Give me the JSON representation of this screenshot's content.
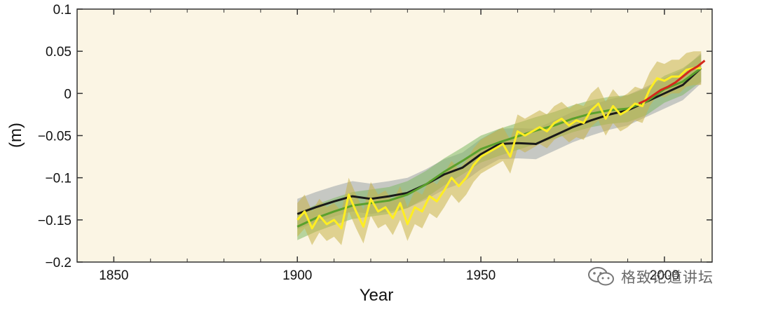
{
  "colors": {
    "background": "#fbf5e4",
    "axis": "#333333",
    "black_series": "#1a1a1a",
    "green_series": "#5aa02c",
    "yellow_series": "#ffee22",
    "red_series": "#d4281c",
    "black_band": "#9aa3a8",
    "green_band": "#7fb864",
    "yellow_band": "#c9b24a"
  },
  "watermark": {
    "text": "格致论道讲坛",
    "icon": "wechat-icon"
  },
  "chart_data": {
    "type": "line",
    "xlabel": "Year",
    "ylabel": "(m)",
    "xlim": [
      1840,
      2013
    ],
    "ylim": [
      -0.2,
      0.1
    ],
    "xticks": [
      1850,
      1900,
      1950,
      2000
    ],
    "xtick_labels": [
      "1850",
      "1900",
      "1950",
      "2000"
    ],
    "yticks": [
      0.1,
      0.05,
      0,
      -0.05,
      -0.1,
      -0.15,
      -0.2
    ],
    "ytick_labels": [
      "0.1",
      "0.05",
      "0",
      "−0.05",
      "−0.1",
      "−0.15",
      "−0.2"
    ],
    "grid": false,
    "series": [
      {
        "color": "#1a1a1a",
        "band": "#9aa3a8",
        "band_width": 0.018,
        "x": [
          1900,
          1905,
          1910,
          1915,
          1920,
          1925,
          1930,
          1935,
          1940,
          1945,
          1950,
          1955,
          1960,
          1965,
          1970,
          1975,
          1980,
          1985,
          1990,
          1995,
          2000,
          2005,
          2010
        ],
        "values": [
          -0.143,
          -0.135,
          -0.128,
          -0.122,
          -0.125,
          -0.122,
          -0.118,
          -0.108,
          -0.096,
          -0.088,
          -0.072,
          -0.06,
          -0.059,
          -0.06,
          -0.05,
          -0.04,
          -0.032,
          -0.025,
          -0.02,
          -0.01,
          0.0,
          0.01,
          0.03
        ]
      },
      {
        "color": "#5aa02c",
        "band": "#7fb864",
        "band_width": 0.016,
        "x": [
          1900,
          1905,
          1910,
          1915,
          1920,
          1925,
          1930,
          1935,
          1940,
          1945,
          1950,
          1955,
          1960,
          1965,
          1970,
          1975,
          1980,
          1985,
          1990,
          1995,
          2000,
          2005,
          2010
        ],
        "values": [
          -0.158,
          -0.148,
          -0.14,
          -0.133,
          -0.13,
          -0.127,
          -0.12,
          -0.108,
          -0.093,
          -0.08,
          -0.066,
          -0.058,
          -0.051,
          -0.044,
          -0.038,
          -0.03,
          -0.024,
          -0.02,
          -0.018,
          -0.01,
          0.005,
          0.014,
          0.03
        ]
      },
      {
        "color": "#ffee22",
        "band": "#c9b24a",
        "band_width": 0.02,
        "x": [
          1900,
          1902,
          1904,
          1906,
          1908,
          1910,
          1912,
          1914,
          1916,
          1918,
          1920,
          1922,
          1924,
          1926,
          1928,
          1930,
          1932,
          1934,
          1936,
          1938,
          1940,
          1942,
          1944,
          1946,
          1948,
          1950,
          1952,
          1954,
          1956,
          1958,
          1960,
          1962,
          1964,
          1966,
          1968,
          1970,
          1972,
          1974,
          1976,
          1978,
          1980,
          1982,
          1984,
          1986,
          1988,
          1990,
          1992,
          1994,
          1996,
          1998,
          2000,
          2002,
          2004,
          2006,
          2008,
          2010
        ],
        "values": [
          -0.15,
          -0.14,
          -0.16,
          -0.145,
          -0.155,
          -0.15,
          -0.16,
          -0.12,
          -0.14,
          -0.158,
          -0.125,
          -0.14,
          -0.135,
          -0.148,
          -0.13,
          -0.155,
          -0.135,
          -0.14,
          -0.122,
          -0.128,
          -0.115,
          -0.1,
          -0.11,
          -0.1,
          -0.085,
          -0.075,
          -0.07,
          -0.065,
          -0.06,
          -0.075,
          -0.045,
          -0.05,
          -0.045,
          -0.04,
          -0.045,
          -0.035,
          -0.03,
          -0.038,
          -0.032,
          -0.035,
          -0.02,
          -0.012,
          -0.03,
          -0.015,
          -0.025,
          -0.02,
          -0.012,
          -0.015,
          0.005,
          0.018,
          0.015,
          0.02,
          0.02,
          0.028,
          0.03,
          0.03
        ]
      },
      {
        "color": "#d4281c",
        "band": "",
        "band_width": 0,
        "x": [
          1993,
          1995,
          1997,
          1999,
          2001,
          2003,
          2005,
          2007,
          2009,
          2011
        ],
        "values": [
          -0.012,
          -0.008,
          -0.002,
          0.004,
          0.008,
          0.013,
          0.02,
          0.027,
          0.032,
          0.039
        ]
      }
    ]
  }
}
